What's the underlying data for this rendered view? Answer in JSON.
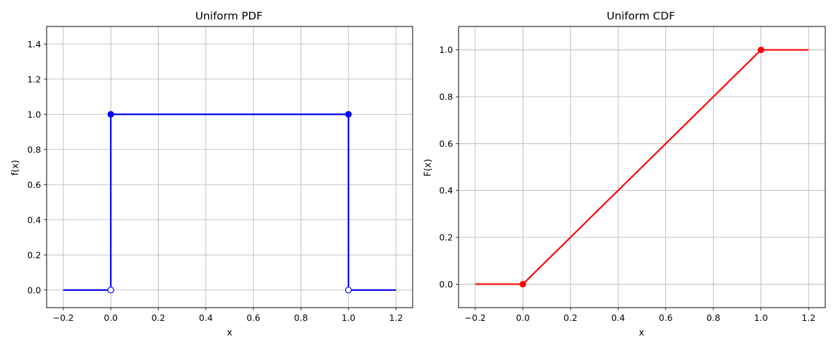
{
  "figure": {
    "charts": [
      {
        "title": "Uniform PDF",
        "xlabel": "x",
        "ylabel": "f(x)"
      },
      {
        "title": "Uniform CDF",
        "xlabel": "x",
        "ylabel": "F(x)"
      }
    ]
  },
  "chart_data": [
    {
      "type": "line",
      "title": "Uniform PDF",
      "xlabel": "x",
      "ylabel": "f(x)",
      "xlim": [
        -0.27,
        1.27
      ],
      "ylim": [
        -0.1,
        1.5
      ],
      "xticks": [
        -0.2,
        0.0,
        0.2,
        0.4,
        0.6,
        0.8,
        1.0,
        1.2
      ],
      "xtick_labels": [
        "−0.2",
        "0.0",
        "0.2",
        "0.4",
        "0.6",
        "0.8",
        "1.0",
        "1.2"
      ],
      "yticks": [
        0.0,
        0.2,
        0.4,
        0.6,
        0.8,
        1.0,
        1.2,
        1.4
      ],
      "ytick_labels": [
        "0.0",
        "0.2",
        "0.4",
        "0.6",
        "0.8",
        "1.0",
        "1.2",
        "1.4"
      ],
      "grid": true,
      "color": "#0000ff",
      "segments": [
        [
          [
            -0.2,
            0.0
          ],
          [
            0.0,
            0.0
          ]
        ],
        [
          [
            0.0,
            0.0
          ],
          [
            0.0,
            1.0
          ]
        ],
        [
          [
            0.0,
            1.0
          ],
          [
            1.0,
            1.0
          ]
        ],
        [
          [
            1.0,
            1.0
          ],
          [
            1.0,
            0.0
          ]
        ],
        [
          [
            1.0,
            0.0
          ],
          [
            1.2,
            0.0
          ]
        ]
      ],
      "filled_points": [
        [
          0.0,
          1.0
        ],
        [
          1.0,
          1.0
        ]
      ],
      "open_points": [
        [
          0.0,
          0.0
        ],
        [
          1.0,
          0.0
        ]
      ]
    },
    {
      "type": "line",
      "title": "Uniform CDF",
      "xlabel": "x",
      "ylabel": "F(x)",
      "xlim": [
        -0.27,
        1.27
      ],
      "ylim": [
        -0.1,
        1.1
      ],
      "xticks": [
        -0.2,
        0.0,
        0.2,
        0.4,
        0.6,
        0.8,
        1.0,
        1.2
      ],
      "xtick_labels": [
        "−0.2",
        "0.0",
        "0.2",
        "0.4",
        "0.6",
        "0.8",
        "1.0",
        "1.2"
      ],
      "yticks": [
        0.0,
        0.2,
        0.4,
        0.6,
        0.8,
        1.0
      ],
      "ytick_labels": [
        "0.0",
        "0.2",
        "0.4",
        "0.6",
        "0.8",
        "1.0"
      ],
      "grid": true,
      "color": "#ff0000",
      "segments": [
        [
          [
            -0.2,
            0.0
          ],
          [
            0.0,
            0.0
          ]
        ],
        [
          [
            0.0,
            0.0
          ],
          [
            1.0,
            1.0
          ]
        ],
        [
          [
            1.0,
            1.0
          ],
          [
            1.2,
            1.0
          ]
        ]
      ],
      "filled_points": [
        [
          0.0,
          0.0
        ],
        [
          1.0,
          1.0
        ]
      ],
      "open_points": []
    }
  ]
}
